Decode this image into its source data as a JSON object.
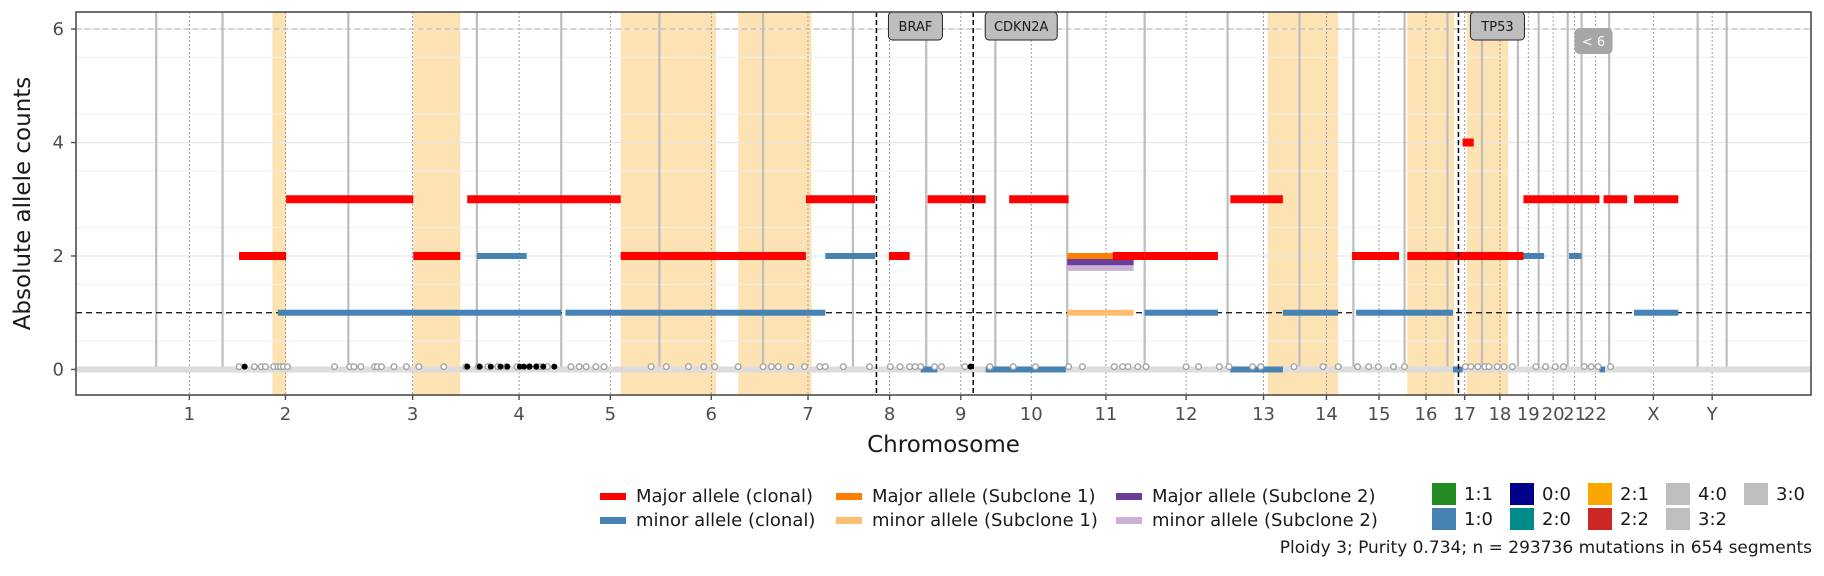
{
  "chart_data": {
    "type": "scatter",
    "subtype": "copy-number segment plot",
    "xlabel": "Chromosome",
    "ylabel": "Absolute allele counts",
    "ylim": [
      -0.45,
      6.3
    ],
    "yticks": [
      0,
      2,
      4,
      6
    ],
    "ploidy_line": 1,
    "max_line": 6,
    "chromosome_labels": [
      "1",
      "2",
      "3",
      "4",
      "5",
      "6",
      "7",
      "8",
      "9",
      "10",
      "11",
      "12",
      "13",
      "14",
      "15",
      "16",
      "17",
      "18",
      "19",
      "20",
      "21",
      "22",
      "X",
      "Y"
    ],
    "chromosome_bounds": [
      0,
      48,
      139,
      232,
      293,
      364,
      439,
      504,
      557,
      607,
      659,
      715,
      775,
      827,
      866,
      903,
      934,
      959,
      985,
      1000,
      1021,
      1031,
      1051,
      1115,
      1136
    ],
    "xlim": [
      -58,
      1197
    ],
    "highlights": [
      [
        84,
        94
      ],
      [
        186,
        220
      ],
      [
        336,
        405
      ],
      [
        421,
        474
      ],
      [
        804,
        855
      ],
      [
        905,
        939
      ],
      [
        948,
        978
      ]
    ],
    "genes": [
      {
        "name": "BRAF",
        "pos": 521
      },
      {
        "name": "CDKN2A",
        "pos": 591
      },
      {
        "name": "TP53",
        "pos": 942
      }
    ],
    "indicator": "< 6",
    "segments_major_clonal": [
      {
        "start": 60,
        "end": 94,
        "cn": 2
      },
      {
        "start": 94,
        "end": 186,
        "cn": 3
      },
      {
        "start": 186,
        "end": 220,
        "cn": 2
      },
      {
        "start": 225,
        "end": 336,
        "cn": 3
      },
      {
        "start": 336,
        "end": 470,
        "cn": 2
      },
      {
        "start": 470,
        "end": 520,
        "cn": 3
      },
      {
        "start": 530,
        "end": 545,
        "cn": 2
      },
      {
        "start": 558,
        "end": 600,
        "cn": 3
      },
      {
        "start": 617,
        "end": 660,
        "cn": 3
      },
      {
        "start": 692,
        "end": 715,
        "cn": 2
      },
      {
        "start": 715,
        "end": 768,
        "cn": 2
      },
      {
        "start": 777,
        "end": 815,
        "cn": 3
      },
      {
        "start": 865,
        "end": 899,
        "cn": 2
      },
      {
        "start": 905,
        "end": 968,
        "cn": 2
      },
      {
        "start": 945,
        "end": 953,
        "cn": 4
      },
      {
        "start": 960,
        "end": 989,
        "cn": 2
      },
      {
        "start": 989,
        "end": 1044,
        "cn": 3
      },
      {
        "start": 1047,
        "end": 1064,
        "cn": 3
      },
      {
        "start": 1069,
        "end": 1101,
        "cn": 3
      }
    ],
    "segments_minor_clonal": [
      {
        "start": 60,
        "end": 90,
        "cn": 2
      },
      {
        "start": 88,
        "end": 220,
        "cn": 1
      },
      {
        "start": 220,
        "end": 293,
        "cn": 1
      },
      {
        "start": 232,
        "end": 268,
        "cn": 2
      },
      {
        "start": 296,
        "end": 346,
        "cn": 1
      },
      {
        "start": 346,
        "end": 484,
        "cn": 1
      },
      {
        "start": 444,
        "end": 460,
        "cn": 2
      },
      {
        "start": 484,
        "end": 520,
        "cn": 2
      },
      {
        "start": 534,
        "end": 545,
        "cn": 2
      },
      {
        "start": 560,
        "end": 585,
        "cn": 3
      },
      {
        "start": 553,
        "end": 565,
        "cn": 0
      },
      {
        "start": 610,
        "end": 658,
        "cn": 0
      },
      {
        "start": 600,
        "end": 611,
        "cn": 0
      },
      {
        "start": 715,
        "end": 768,
        "cn": 1
      },
      {
        "start": 777,
        "end": 815,
        "cn": 0
      },
      {
        "start": 815,
        "end": 855,
        "cn": 1
      },
      {
        "start": 868,
        "end": 899,
        "cn": 1
      },
      {
        "start": 899,
        "end": 938,
        "cn": 1
      },
      {
        "start": 908,
        "end": 938,
        "cn": 2
      },
      {
        "start": 960,
        "end": 1004,
        "cn": 2
      },
      {
        "start": 1022,
        "end": 1031,
        "cn": 2
      },
      {
        "start": 1047,
        "end": 1064,
        "cn": 3
      },
      {
        "start": 1069,
        "end": 1101,
        "cn": 1
      },
      {
        "start": 1044,
        "end": 1048,
        "cn": 0
      },
      {
        "start": 938,
        "end": 945,
        "cn": 0
      }
    ],
    "segments_major_sub1": [
      {
        "start": 659,
        "end": 707,
        "cn": 2
      }
    ],
    "segments_minor_sub1": [
      {
        "start": 659,
        "end": 707,
        "cn": 1
      }
    ],
    "segments_major_sub2": [
      {
        "start": 659,
        "end": 707,
        "cn": 1.9
      }
    ],
    "segments_minor_sub2": [
      {
        "start": 659,
        "end": 707,
        "cn": 1.8
      }
    ],
    "mutations_grey": [
      60,
      71,
      76,
      79,
      85,
      88,
      90,
      92,
      95,
      129,
      140,
      143,
      148,
      158,
      160,
      163,
      172,
      181,
      190,
      208,
      224,
      233,
      240,
      247,
      253,
      261,
      270,
      275,
      278,
      283,
      300,
      306,
      311,
      318,
      324,
      358,
      369,
      385,
      396,
      404,
      421,
      439,
      445,
      450,
      459,
      469,
      480,
      484,
      497,
      516,
      531,
      538,
      545,
      549,
      553,
      563,
      568,
      585,
      603,
      620,
      636,
      660,
      670,
      693,
      699,
      703,
      710,
      716,
      745,
      754,
      769,
      776,
      793,
      799,
      823,
      844,
      855,
      869,
      877,
      884,
      895,
      903,
      947,
      951,
      956,
      961,
      964,
      970,
      975,
      981,
      998,
      1005,
      1012,
      1018,
      1033,
      1038,
      1043,
      1052
    ],
    "mutations_black": [
      64,
      225,
      234,
      242,
      249,
      254,
      263,
      266,
      270,
      275,
      280,
      288,
      589
    ]
  },
  "legend": {
    "major_clonal": "Major allele (clonal)",
    "minor_clonal": "minor allele (clonal)",
    "major_sub1": "Major allele (Subclone 1)",
    "minor_sub1": "minor allele (Subclone 1)",
    "major_sub2": "Major allele (Subclone 2)",
    "minor_sub2": "minor allele (Subclone 2)",
    "genotypes": [
      {
        "label": "1:1",
        "color": "#228b22"
      },
      {
        "label": "0:0",
        "color": "#00008b"
      },
      {
        "label": "2:1",
        "color": "#ffa500"
      },
      {
        "label": "4:0",
        "color": "#bebebe"
      },
      {
        "label": "3:0",
        "color": "#bebebe"
      },
      {
        "label": "1:0",
        "color": "#4682b4"
      },
      {
        "label": "2:0",
        "color": "#008b8b"
      },
      {
        "label": "2:2",
        "color": "#cd2626"
      },
      {
        "label": "3:2",
        "color": "#bebebe"
      }
    ]
  },
  "colors": {
    "major_clonal": "#ff0000",
    "minor_clonal": "#4682b4",
    "major_sub1": "#ff7f00",
    "minor_sub1": "#fdbf6f",
    "major_sub2": "#6a3d9a",
    "minor_sub2": "#cab2d6",
    "highlight": "#fde3b3",
    "mutation_grey": "#a6a6a6",
    "gene_box": "#bebebe"
  },
  "footer": "Ploidy 3; Purity  0.734; n = 293736 mutations in 654 segments"
}
